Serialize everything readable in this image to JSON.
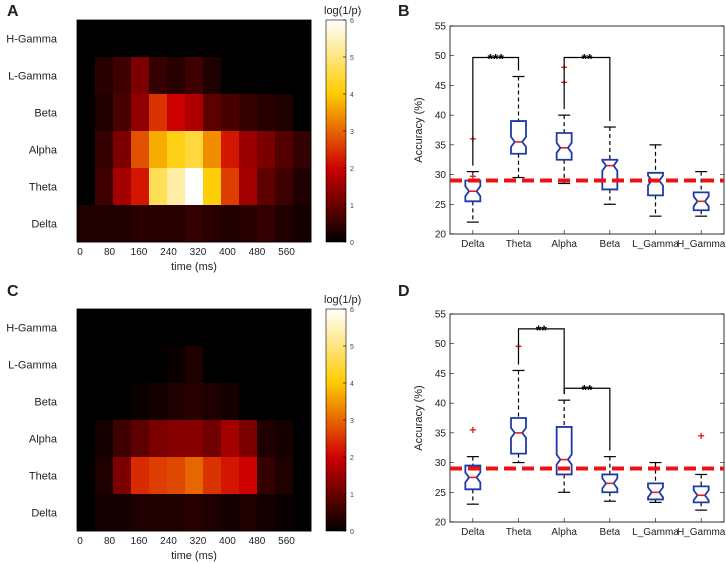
{
  "panels": [
    {
      "label": "A",
      "type": "heatmap",
      "index": 0
    },
    {
      "label": "B",
      "type": "boxplot",
      "index": 0
    },
    {
      "label": "C",
      "type": "heatmap",
      "index": 1
    },
    {
      "label": "D",
      "type": "boxplot",
      "index": 1
    }
  ],
  "chart_data": [
    {
      "type": "heatmap",
      "panel": "A",
      "xlabel": "time (ms)",
      "x_ticks": [
        "0",
        "80",
        "160",
        "240",
        "320",
        "400",
        "480",
        "560"
      ],
      "rows": [
        "H-Gamma",
        "L-Gamma",
        "Beta",
        "Alpha",
        "Theta",
        "Delta"
      ],
      "colorbar": {
        "title": "log(1/p)",
        "min": 0,
        "max": 6,
        "ticks": [
          "0",
          "1",
          "2",
          "3",
          "4",
          "5",
          "6"
        ]
      },
      "values": [
        [
          0.0,
          0.0,
          0.0,
          0.0,
          0.0,
          0.0,
          0.0,
          0.0,
          0.0,
          0.0,
          0.0,
          0.0,
          0.0
        ],
        [
          0.0,
          0.4,
          0.6,
          1.2,
          0.5,
          0.4,
          0.6,
          0.3,
          0.0,
          0.0,
          0.0,
          0.0,
          0.0
        ],
        [
          0.0,
          0.3,
          0.7,
          1.4,
          2.5,
          2.0,
          1.7,
          0.9,
          0.7,
          0.5,
          0.4,
          0.3,
          0.0
        ],
        [
          0.0,
          0.5,
          1.2,
          2.8,
          3.7,
          4.2,
          4.5,
          3.4,
          2.2,
          1.5,
          1.2,
          0.8,
          0.5
        ],
        [
          0.0,
          0.6,
          1.6,
          2.2,
          4.7,
          5.3,
          6.0,
          4.1,
          2.6,
          1.6,
          0.9,
          0.6,
          0.3
        ],
        [
          0.3,
          0.3,
          0.3,
          0.4,
          0.4,
          0.4,
          0.5,
          0.4,
          0.3,
          0.4,
          0.5,
          0.3,
          0.2
        ]
      ]
    },
    {
      "type": "boxplot",
      "panel": "B",
      "ylabel": "Accuracy (%)",
      "ylim": [
        20,
        55
      ],
      "yticks": [
        "20",
        "25",
        "30",
        "35",
        "40",
        "45",
        "50",
        "55"
      ],
      "categories": [
        "Delta",
        "Theta",
        "Alpha",
        "Beta",
        "L_Gamma",
        "H_Gamma"
      ],
      "boxes": [
        {
          "whisker_low": 22,
          "q1": 25.5,
          "median": 27.2,
          "q3": 29,
          "whisker_high": 30.5,
          "outliers": [
            36,
            29.7
          ]
        },
        {
          "whisker_low": 29.5,
          "q1": 33.5,
          "median": 35.5,
          "q3": 39,
          "whisker_high": 46.5,
          "outliers": []
        },
        {
          "whisker_low": 28.5,
          "q1": 32.5,
          "median": 34.5,
          "q3": 37,
          "whisker_high": 40,
          "outliers": [
            48,
            45.5
          ]
        },
        {
          "whisker_low": 25,
          "q1": 27.5,
          "median": 31.5,
          "q3": 32.5,
          "whisker_high": 38,
          "outliers": []
        },
        {
          "whisker_low": 23,
          "q1": 26.5,
          "median": 29,
          "q3": 30.3,
          "whisker_high": 35,
          "outliers": []
        },
        {
          "whisker_low": 23,
          "q1": 24,
          "median": 25.5,
          "q3": 27,
          "whisker_high": 30.5,
          "outliers": []
        }
      ],
      "chance_level": 29,
      "significance": [
        {
          "from": 0,
          "to": 1,
          "label": "***",
          "y": 49.7
        },
        {
          "from": 2,
          "to": 3,
          "label": "**",
          "y": 49.7
        }
      ]
    },
    {
      "type": "heatmap",
      "panel": "C",
      "xlabel": "time (ms)",
      "x_ticks": [
        "0",
        "80",
        "160",
        "240",
        "320",
        "400",
        "480",
        "560"
      ],
      "rows": [
        "H-Gamma",
        "L-Gamma",
        "Beta",
        "Alpha",
        "Theta",
        "Delta"
      ],
      "colorbar": {
        "title": "log(1/p)",
        "min": 0,
        "max": 6,
        "ticks": [
          "0",
          "1",
          "2",
          "3",
          "4",
          "5",
          "6"
        ]
      },
      "values": [
        [
          0.0,
          0.0,
          0.0,
          0.0,
          0.0,
          0.0,
          0.0,
          0.0,
          0.0,
          0.0,
          0.0,
          0.0,
          0.0
        ],
        [
          0.0,
          0.0,
          0.0,
          0.0,
          0.0,
          0.1,
          0.3,
          0.0,
          0.0,
          0.0,
          0.0,
          0.0,
          0.0
        ],
        [
          0.0,
          0.0,
          0.0,
          0.1,
          0.2,
          0.3,
          0.4,
          0.3,
          0.2,
          0.0,
          0.0,
          0.0,
          0.0
        ],
        [
          0.0,
          0.2,
          0.6,
          0.9,
          1.2,
          1.3,
          1.3,
          1.1,
          1.6,
          1.2,
          0.3,
          0.2,
          0.0
        ],
        [
          0.0,
          0.3,
          1.2,
          2.4,
          2.6,
          2.7,
          3.0,
          2.5,
          2.2,
          2.0,
          0.5,
          0.3,
          0.0
        ],
        [
          0.0,
          0.2,
          0.2,
          0.3,
          0.3,
          0.3,
          0.4,
          0.3,
          0.2,
          0.3,
          0.2,
          0.1,
          0.0
        ]
      ]
    },
    {
      "type": "boxplot",
      "panel": "D",
      "ylabel": "Accuracy (%)",
      "ylim": [
        20,
        55
      ],
      "yticks": [
        "20",
        "25",
        "30",
        "35",
        "40",
        "45",
        "50",
        "55"
      ],
      "categories": [
        "Delta",
        "Theta",
        "Alpha",
        "Beta",
        "L_Gamma",
        "H_Gamma"
      ],
      "boxes": [
        {
          "whisker_low": 23,
          "q1": 25.5,
          "median": 27.5,
          "q3": 29.5,
          "whisker_high": 31,
          "outliers": [
            35.5
          ]
        },
        {
          "whisker_low": 30,
          "q1": 31.5,
          "median": 35,
          "q3": 37.5,
          "whisker_high": 45.5,
          "outliers": [
            49.5
          ]
        },
        {
          "whisker_low": 25,
          "q1": 28,
          "median": 30.5,
          "q3": 36,
          "whisker_high": 40.5,
          "outliers": []
        },
        {
          "whisker_low": 23.5,
          "q1": 25,
          "median": 26.5,
          "q3": 28,
          "whisker_high": 31,
          "outliers": []
        },
        {
          "whisker_low": 23.3,
          "q1": 23.8,
          "median": 25,
          "q3": 26.5,
          "whisker_high": 30,
          "outliers": []
        },
        {
          "whisker_low": 22,
          "q1": 23.3,
          "median": 24.5,
          "q3": 26,
          "whisker_high": 28,
          "outliers": [
            34.5
          ]
        }
      ],
      "chance_level": 29,
      "significance": [
        {
          "from": 1,
          "to": 2,
          "label": "**",
          "y": 52.5
        },
        {
          "from": 2,
          "to": 3,
          "label": "**",
          "y": 42.5
        }
      ]
    }
  ]
}
